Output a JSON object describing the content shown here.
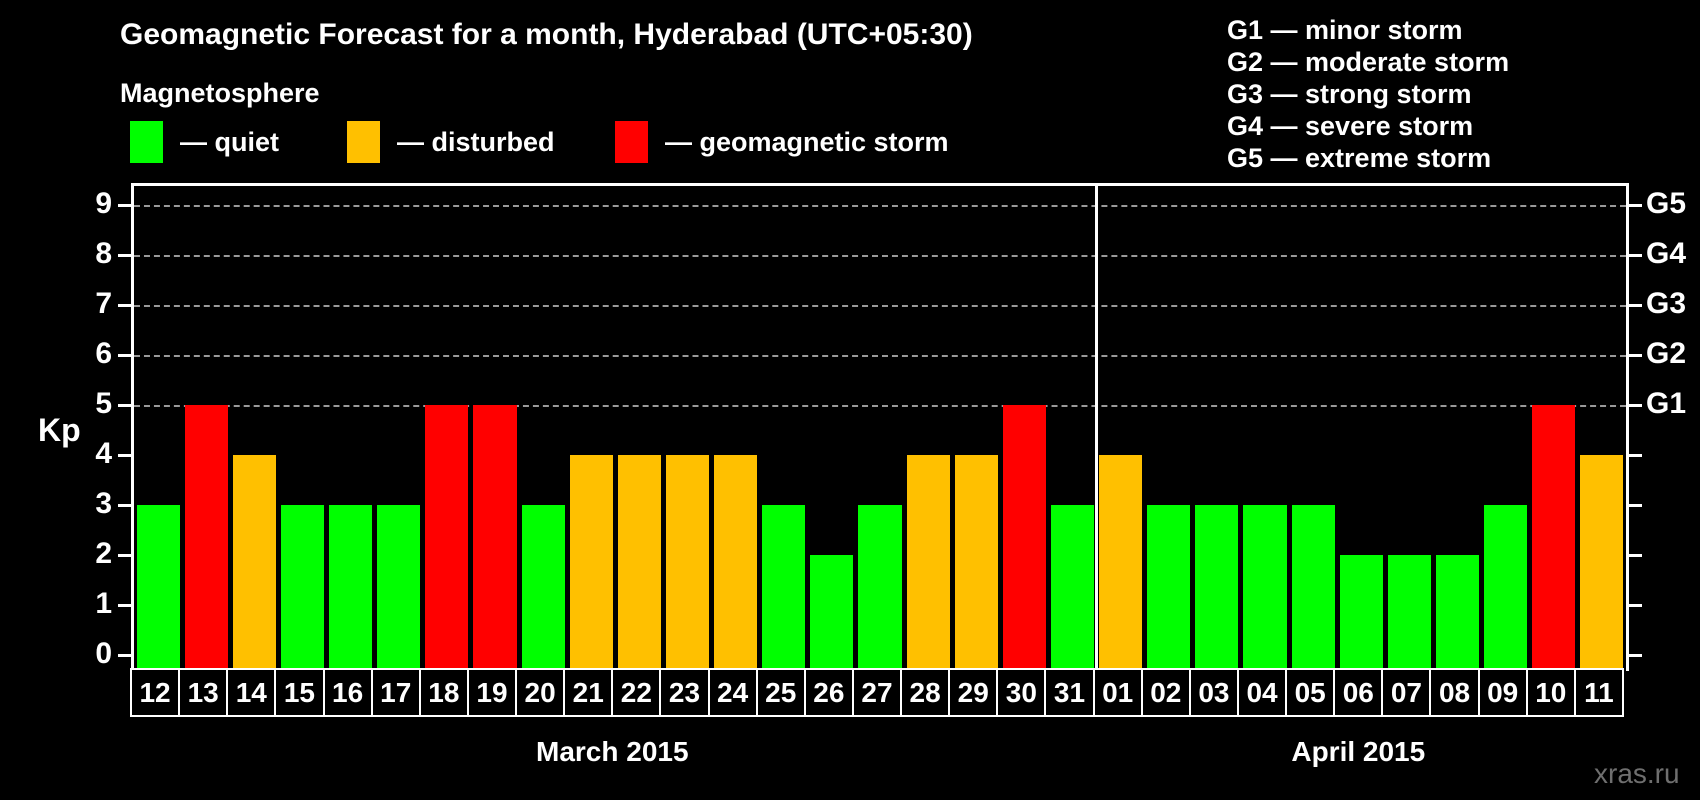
{
  "title": "Geomagnetic Forecast for a month, Hyderabad (UTC+05:30)",
  "subtitle": "Magnetosphere",
  "legend": {
    "items": [
      {
        "name": "quiet",
        "label": "— quiet",
        "color": "#00ff00"
      },
      {
        "name": "disturbed",
        "label": "— disturbed",
        "color": "#ffc000"
      },
      {
        "name": "storm",
        "label": "— geomagnetic storm",
        "color": "#ff0000"
      }
    ]
  },
  "storm_legend": [
    "G1 — minor storm",
    "G2 — moderate storm",
    "G3 — strong storm",
    "G4 — severe storm",
    "G5 — extreme storm"
  ],
  "watermark": "xras.ru",
  "chart_data": {
    "type": "bar",
    "title": "Geomagnetic Forecast for a month, Hyderabad (UTC+05:30)",
    "xlabel": "",
    "ylabel": "Kp",
    "ylim": [
      0,
      9.4
    ],
    "yticks": [
      0,
      1,
      2,
      3,
      4,
      5,
      6,
      7,
      8,
      9
    ],
    "right_axis": [
      {
        "value": 5,
        "label": "G1"
      },
      {
        "value": 6,
        "label": "G2"
      },
      {
        "value": 7,
        "label": "G3"
      },
      {
        "value": 8,
        "label": "G4"
      },
      {
        "value": 9,
        "label": "G5"
      }
    ],
    "gridlines_at": [
      5,
      6,
      7,
      8,
      9
    ],
    "grid_style": "horizontal dashed gray",
    "legend_position": "top",
    "categories": [
      "12",
      "13",
      "14",
      "15",
      "16",
      "17",
      "18",
      "19",
      "20",
      "21",
      "22",
      "23",
      "24",
      "25",
      "26",
      "27",
      "28",
      "29",
      "30",
      "31",
      "01",
      "02",
      "03",
      "04",
      "05",
      "06",
      "07",
      "08",
      "09",
      "10",
      "11"
    ],
    "values": [
      3,
      5,
      4,
      3,
      3,
      3,
      5,
      5,
      3,
      4,
      4,
      4,
      4,
      3,
      2,
      3,
      4,
      4,
      5,
      3,
      4,
      3,
      3,
      3,
      3,
      2,
      2,
      2,
      3,
      5,
      4
    ],
    "statuses": [
      "quiet",
      "storm",
      "disturbed",
      "quiet",
      "quiet",
      "quiet",
      "storm",
      "storm",
      "quiet",
      "disturbed",
      "disturbed",
      "disturbed",
      "disturbed",
      "quiet",
      "quiet",
      "quiet",
      "disturbed",
      "disturbed",
      "storm",
      "quiet",
      "disturbed",
      "quiet",
      "quiet",
      "quiet",
      "quiet",
      "quiet",
      "quiet",
      "quiet",
      "quiet",
      "storm",
      "disturbed"
    ],
    "status_colors": {
      "quiet": "#00ff00",
      "disturbed": "#ffc000",
      "storm": "#ff0000"
    },
    "months": [
      {
        "label": "March 2015",
        "start_index": 0,
        "end_index": 19
      },
      {
        "label": "April 2015",
        "start_index": 20,
        "end_index": 30
      }
    ]
  }
}
